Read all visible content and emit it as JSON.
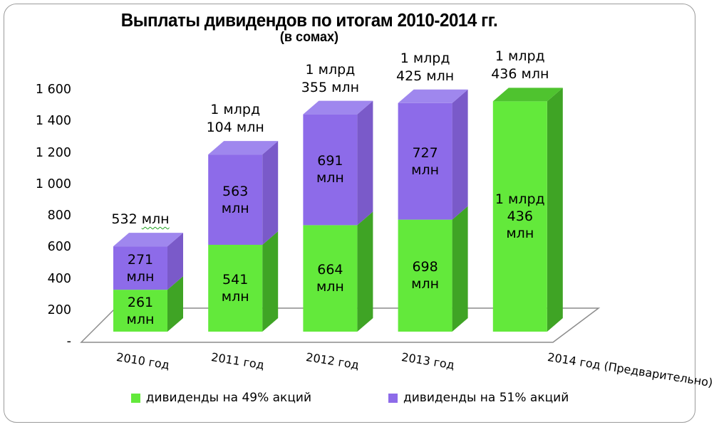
{
  "chart_data": {
    "type": "bar",
    "stacked": true,
    "style": "3d",
    "title": "Выплаты дивидендов по итогам 2010-2014 гг.",
    "subtitle": "(в сомах)",
    "categories": [
      "2010 год",
      "2011 год",
      "2012 год",
      "2013 год",
      "2014 год (Предварительно)"
    ],
    "series": [
      {
        "name": "дивиденды на 49% акций",
        "values": [
          261,
          541,
          664,
          698,
          1436
        ]
      },
      {
        "name": "дивиденды на 51% акций",
        "values": [
          271,
          563,
          691,
          727,
          0
        ]
      }
    ],
    "segment_labels_49": [
      [
        "261",
        "млн"
      ],
      [
        "541",
        "млн"
      ],
      [
        "664",
        "млн"
      ],
      [
        "698",
        "млн"
      ],
      [
        "1 млрд",
        "436",
        "млн"
      ]
    ],
    "segment_labels_51": [
      [
        "271",
        "млн"
      ],
      [
        "563",
        "млн"
      ],
      [
        "691",
        "млн"
      ],
      [
        "727",
        "млн"
      ],
      null
    ],
    "total_labels": [
      {
        "lines": [
          "532 млн"
        ],
        "wavy_word": "млн"
      },
      {
        "lines": [
          "1 млрд",
          "104 млн"
        ]
      },
      {
        "lines": [
          "1 млрд",
          "355 млн"
        ]
      },
      {
        "lines": [
          "1 млрд",
          "425 млн"
        ]
      },
      {
        "lines": [
          "1 млрд",
          "436 млн"
        ]
      }
    ],
    "y_axis": {
      "range": [
        0,
        1600
      ],
      "gridlines": false,
      "ticks": [
        {
          "label": "1 600",
          "value": 1600
        },
        {
          "label": "1 400",
          "value": 1400
        },
        {
          "label": "1 200",
          "value": 1200
        },
        {
          "label": "1 000",
          "value": 1000
        },
        {
          "label": "800",
          "value": 800
        },
        {
          "label": "600",
          "value": 600
        },
        {
          "label": "400",
          "value": 400
        },
        {
          "label": "200",
          "value": 200
        },
        {
          "label": "-",
          "value": 0
        }
      ]
    },
    "legend": {
      "position": "bottom",
      "items": [
        {
          "label": "дивиденды на 49% акций",
          "color": "#63e93b"
        },
        {
          "label": "дивиденды на 51% акций",
          "color": "#8d6be9"
        }
      ]
    },
    "colors": {
      "series_49": {
        "front": "#63e93b",
        "top": "#4fc32f",
        "side": "#3fa425"
      },
      "series_51": {
        "front": "#8d6be9",
        "top": "#9f87ee",
        "side": "#7a5ac9"
      },
      "floor_stroke": "#8c8c8c",
      "label_text": "#000000",
      "wavy_underline": "#21a121"
    }
  }
}
